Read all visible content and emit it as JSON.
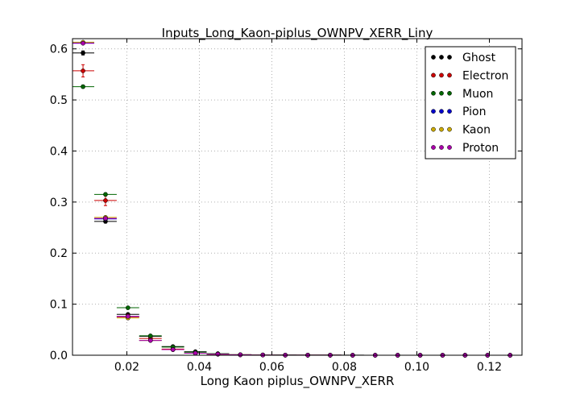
{
  "chart_data": {
    "type": "scatter",
    "title": "Inputs_Long_Kaon-piplus_OWNPV_XERR_Liny",
    "xlabel": "Long Kaon piplus_OWNPV_XERR",
    "ylabel": "",
    "xlim": [
      0.005,
      0.129
    ],
    "ylim": [
      0.0,
      0.62
    ],
    "x_ticks": [
      0.02,
      0.04,
      0.06,
      0.08,
      0.1,
      0.12
    ],
    "x_tick_labels": [
      "0.02",
      "0.04",
      "0.06",
      "0.08",
      "0.10",
      "0.12"
    ],
    "y_ticks": [
      0.0,
      0.1,
      0.2,
      0.3,
      0.4,
      0.5,
      0.6
    ],
    "y_tick_labels": [
      "0.0",
      "0.1",
      "0.2",
      "0.3",
      "0.4",
      "0.5",
      "0.6"
    ],
    "grid": true,
    "legend_position": "top-right",
    "x": [
      0.0079,
      0.0141,
      0.0203,
      0.0265,
      0.0327,
      0.0389,
      0.0451,
      0.0513,
      0.0575,
      0.0637,
      0.0699,
      0.0761,
      0.0823,
      0.0885,
      0.0947,
      0.1009,
      0.1071,
      0.1133,
      0.1195,
      0.1257
    ],
    "x_half_width": 0.0031,
    "series": [
      {
        "name": "Ghost",
        "color": "#000000",
        "values": [
          0.592,
          0.262,
          0.08,
          0.037,
          0.017,
          0.007,
          0.003,
          0.001,
          0.0005,
          0.0003,
          0.0002,
          0.0001,
          0.0001,
          0,
          0,
          0,
          0,
          0,
          0,
          0
        ],
        "yerr": [
          0.004,
          0.003,
          0.002,
          0.001,
          0.001,
          0.0005,
          0.0003,
          0.0002,
          0.0001,
          0.0001,
          0,
          0,
          0,
          0,
          0,
          0,
          0,
          0,
          0,
          0
        ]
      },
      {
        "name": "Electron",
        "color": "#cc0000",
        "values": [
          0.557,
          0.303,
          0.075,
          0.033,
          0.012,
          0.004,
          0.002,
          0.001,
          0.0005,
          0.0002,
          0.0001,
          0.0001,
          0,
          0,
          0,
          0,
          0,
          0,
          0,
          0
        ],
        "yerr": [
          0.012,
          0.01,
          0.005,
          0.003,
          0.002,
          0.001,
          0.001,
          0.0005,
          0.0003,
          0.0002,
          0.0001,
          0,
          0,
          0,
          0,
          0,
          0,
          0,
          0,
          0
        ]
      },
      {
        "name": "Muon",
        "color": "#006600",
        "values": [
          0.526,
          0.315,
          0.093,
          0.038,
          0.016,
          0.006,
          0.003,
          0.001,
          0.0005,
          0.0003,
          0.0002,
          0.0001,
          0,
          0,
          0,
          0,
          0,
          0,
          0,
          0
        ],
        "yerr": [
          0.003,
          0.003,
          0.002,
          0.001,
          0.001,
          0.0005,
          0.0003,
          0.0002,
          0.0001,
          0.0001,
          0,
          0,
          0,
          0,
          0,
          0,
          0,
          0,
          0,
          0
        ]
      },
      {
        "name": "Pion",
        "color": "#0000cc",
        "values": [
          0.612,
          0.267,
          0.076,
          0.029,
          0.011,
          0.004,
          0.002,
          0.0008,
          0.0004,
          0.0002,
          0.0001,
          0.0001,
          0,
          0,
          0,
          0,
          0,
          0,
          0,
          0
        ],
        "yerr": [
          0.001,
          0.001,
          0.0005,
          0.0003,
          0.0002,
          0.0001,
          0.0001,
          0,
          0,
          0,
          0,
          0,
          0,
          0,
          0,
          0,
          0,
          0,
          0,
          0
        ]
      },
      {
        "name": "Kaon",
        "color": "#ccaa00",
        "values": [
          0.613,
          0.27,
          0.073,
          0.029,
          0.011,
          0.004,
          0.002,
          0.0008,
          0.0004,
          0.0002,
          0.0001,
          0.0001,
          0,
          0,
          0,
          0,
          0,
          0,
          0,
          0
        ],
        "yerr": [
          0.001,
          0.001,
          0.0005,
          0.0003,
          0.0002,
          0.0001,
          0.0001,
          0,
          0,
          0,
          0,
          0,
          0,
          0,
          0,
          0,
          0,
          0,
          0,
          0
        ]
      },
      {
        "name": "Proton",
        "color": "#aa00aa",
        "values": [
          0.611,
          0.268,
          0.076,
          0.029,
          0.011,
          0.004,
          0.002,
          0.0008,
          0.0004,
          0.0002,
          0.0001,
          0.0001,
          0,
          0,
          0,
          0,
          0,
          0,
          0,
          0
        ],
        "yerr": [
          0.001,
          0.001,
          0.0005,
          0.0003,
          0.0002,
          0.0001,
          0.0001,
          0,
          0,
          0,
          0,
          0,
          0,
          0,
          0,
          0,
          0,
          0,
          0,
          0
        ]
      }
    ]
  }
}
